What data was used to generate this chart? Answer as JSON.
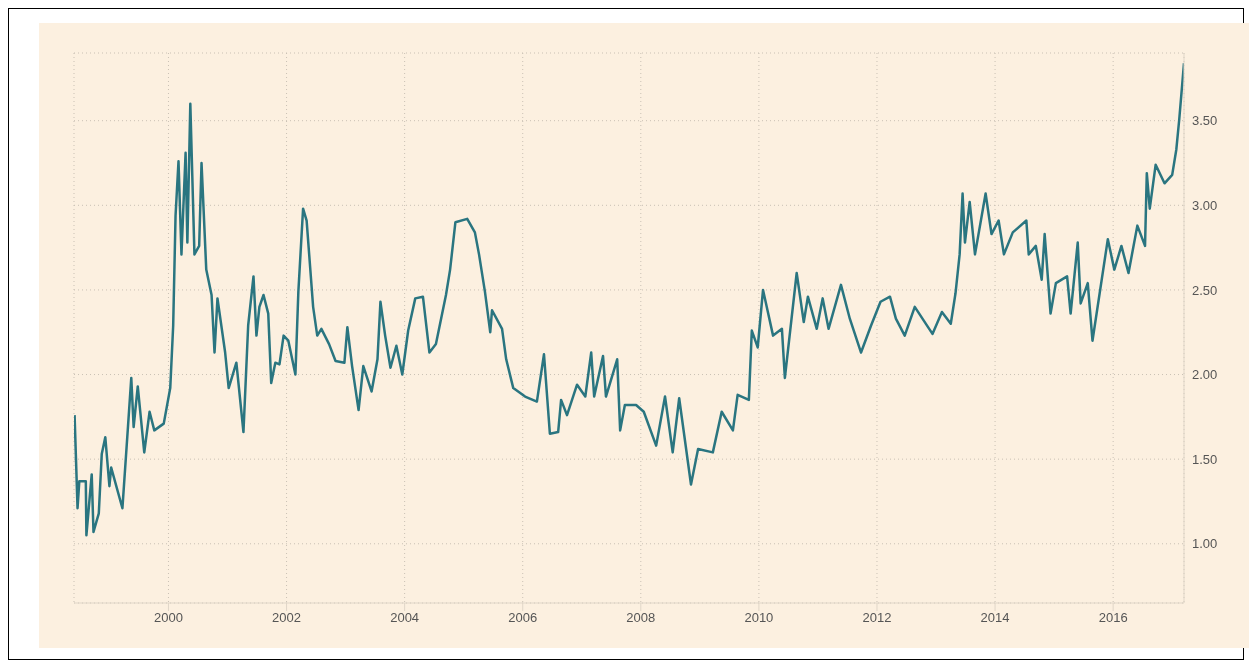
{
  "chart_data": {
    "type": "line",
    "color": "#2a7580",
    "grid": true,
    "xlim": [
      1998.4,
      2017.2
    ],
    "xticks": [
      2000,
      2002,
      2004,
      2006,
      2008,
      2010,
      2012,
      2014,
      2016
    ],
    "ylim": [
      0.65,
      3.9
    ],
    "yticks": [
      {
        "value": 1,
        "label": "1.00"
      },
      {
        "value": 1.5,
        "label": "1.50"
      },
      {
        "value": 2,
        "label": "2.00"
      },
      {
        "value": 2.5,
        "label": "2.50"
      },
      {
        "value": 3,
        "label": "3.00"
      },
      {
        "value": 3.5,
        "label": "3.50"
      }
    ],
    "x": [
      1998.41,
      1998.46,
      1998.49,
      1998.6,
      1998.61,
      1998.7,
      1998.73,
      1998.82,
      1998.87,
      1998.93,
      1999.0,
      1999.03,
      1999.22,
      1999.31,
      1999.37,
      1999.41,
      1999.48,
      1999.59,
      1999.68,
      1999.76,
      1999.92,
      2000.03,
      2000.08,
      2000.12,
      2000.17,
      2000.22,
      2000.29,
      2000.32,
      2000.37,
      2000.44,
      2000.52,
      2000.56,
      2000.64,
      2000.73,
      2000.78,
      2000.83,
      2000.96,
      2001.02,
      2001.15,
      2001.27,
      2001.35,
      2001.44,
      2001.49,
      2001.54,
      2001.61,
      2001.69,
      2001.74,
      2001.81,
      2001.88,
      2001.95,
      2002.03,
      2002.15,
      2002.2,
      2002.28,
      2002.34,
      2002.45,
      2002.52,
      2002.59,
      2002.72,
      2002.83,
      2002.98,
      2003.03,
      2003.11,
      2003.22,
      2003.3,
      2003.44,
      2003.54,
      2003.59,
      2003.67,
      2003.76,
      2003.86,
      2003.96,
      2004.06,
      2004.18,
      2004.31,
      2004.42,
      2004.53,
      2004.7,
      2004.77,
      2004.86,
      2005.06,
      2005.19,
      2005.26,
      2005.36,
      2005.45,
      2005.48,
      2005.65,
      2005.72,
      2005.84,
      2006.04,
      2006.24,
      2006.36,
      2006.46,
      2006.6,
      2006.65,
      2006.75,
      2006.92,
      2007.06,
      2007.16,
      2007.21,
      2007.36,
      2007.41,
      2007.6,
      2007.65,
      2007.73,
      2007.92,
      2008.05,
      2008.26,
      2008.41,
      2008.54,
      2008.65,
      2008.85,
      2008.97,
      2009.22,
      2009.37,
      2009.56,
      2009.64,
      2009.83,
      2009.88,
      2009.98,
      2010.07,
      2010.24,
      2010.39,
      2010.44,
      2010.64,
      2010.76,
      2010.83,
      2010.98,
      2011.08,
      2011.18,
      2011.39,
      2011.54,
      2011.73,
      2011.9,
      2012.06,
      2012.22,
      2012.32,
      2012.47,
      2012.64,
      2012.94,
      2013.1,
      2013.25,
      2013.33,
      2013.4,
      2013.45,
      2013.49,
      2013.57,
      2013.66,
      2013.84,
      2013.94,
      2014.06,
      2014.15,
      2014.3,
      2014.53,
      2014.57,
      2014.69,
      2014.79,
      2014.84,
      2014.94,
      2015.03,
      2015.22,
      2015.28,
      2015.4,
      2015.45,
      2015.57,
      2015.65,
      2015.91,
      2016.02,
      2016.14,
      2016.26,
      2016.41,
      2016.54,
      2016.57,
      2016.62,
      2016.72,
      2016.87,
      2017.0,
      2017.07,
      2017.12,
      2017.2
    ],
    "values": [
      1.76,
      1.21,
      1.37,
      1.37,
      1.05,
      1.41,
      1.07,
      1.18,
      1.53,
      1.63,
      1.34,
      1.45,
      1.21,
      1.67,
      1.98,
      1.69,
      1.93,
      1.54,
      1.78,
      1.67,
      1.71,
      1.92,
      2.29,
      2.94,
      3.26,
      2.71,
      3.31,
      2.78,
      3.6,
      2.71,
      2.76,
      3.25,
      2.62,
      2.47,
      2.13,
      2.45,
      2.13,
      1.92,
      2.07,
      1.66,
      2.29,
      2.58,
      2.23,
      2.4,
      2.47,
      2.36,
      1.95,
      2.07,
      2.06,
      2.23,
      2.2,
      2.0,
      2.49,
      2.98,
      2.91,
      2.4,
      2.23,
      2.27,
      2.18,
      2.08,
      2.07,
      2.28,
      2.05,
      1.79,
      2.05,
      1.9,
      2.09,
      2.43,
      2.23,
      2.04,
      2.17,
      2.0,
      2.26,
      2.45,
      2.46,
      2.13,
      2.18,
      2.47,
      2.62,
      2.9,
      2.92,
      2.84,
      2.71,
      2.49,
      2.25,
      2.38,
      2.27,
      2.09,
      1.92,
      1.87,
      1.84,
      2.12,
      1.65,
      1.66,
      1.85,
      1.76,
      1.94,
      1.87,
      2.13,
      1.87,
      2.11,
      1.87,
      2.09,
      1.67,
      1.82,
      1.82,
      1.78,
      1.58,
      1.87,
      1.54,
      1.86,
      1.35,
      1.56,
      1.54,
      1.78,
      1.67,
      1.88,
      1.85,
      2.26,
      2.16,
      2.5,
      2.23,
      2.27,
      1.98,
      2.6,
      2.31,
      2.46,
      2.27,
      2.45,
      2.27,
      2.53,
      2.33,
      2.13,
      2.29,
      2.43,
      2.46,
      2.33,
      2.23,
      2.4,
      2.24,
      2.37,
      2.3,
      2.48,
      2.71,
      3.07,
      2.78,
      3.02,
      2.71,
      3.07,
      2.83,
      2.91,
      2.71,
      2.84,
      2.91,
      2.71,
      2.76,
      2.56,
      2.83,
      2.36,
      2.54,
      2.58,
      2.36,
      2.78,
      2.42,
      2.54,
      2.2,
      2.8,
      2.62,
      2.76,
      2.6,
      2.88,
      2.76,
      3.19,
      2.98,
      3.24,
      3.13,
      3.18,
      3.33,
      3.51,
      3.84
    ]
  }
}
